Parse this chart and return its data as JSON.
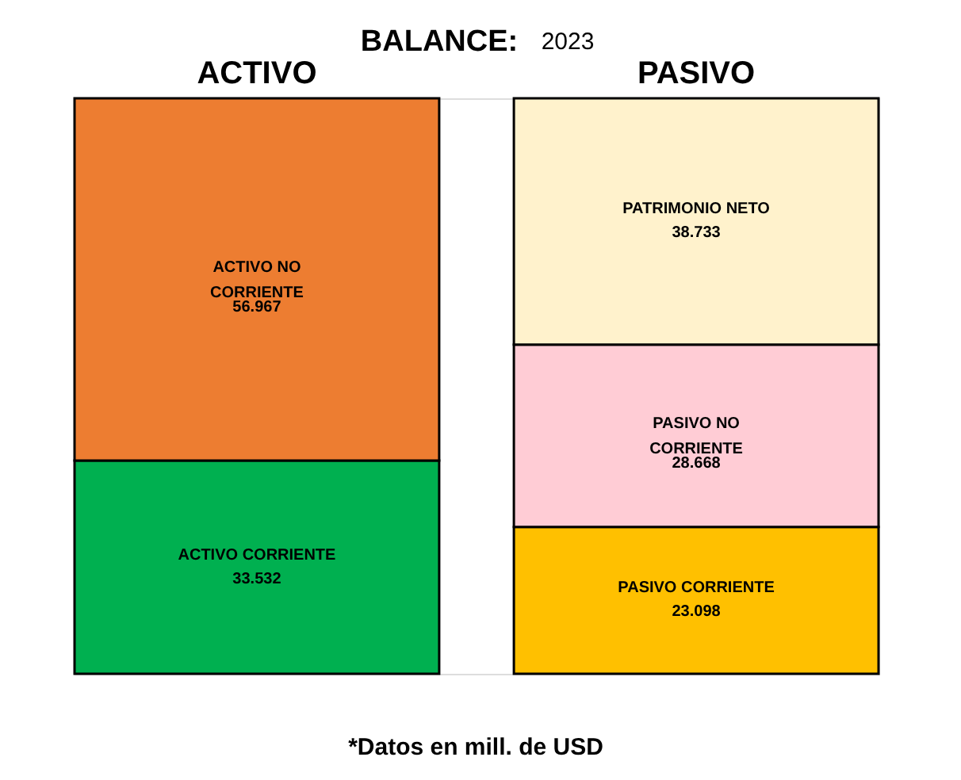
{
  "chart_data": {
    "type": "bar",
    "title": "BALANCE:",
    "subtitle": "2023",
    "categories": [
      "ACTIVO",
      "PASIVO"
    ],
    "stacked": true,
    "data_labels": true,
    "legend": false,
    "series": [
      {
        "name": "ACTIVO CORRIENTE",
        "color": "#00b050",
        "values": [
          33.532,
          null
        ]
      },
      {
        "name": "PASIVO CORRIENTE",
        "color": "#ffc000",
        "values": [
          null,
          23.098
        ]
      },
      {
        "name": "ACTIVO NO CORRIENTE",
        "color": "#ed7d31",
        "values": [
          56.967,
          null
        ]
      },
      {
        "name": "PASIVO NO CORRIENTE",
        "color": "#ffccd5",
        "values": [
          null,
          28.668
        ]
      },
      {
        "name": "PATRIMONIO NETO",
        "color": "#fff2cc",
        "values": [
          null,
          38.733
        ]
      }
    ],
    "annotations": [
      "*Datos en mill. de USD"
    ]
  }
}
